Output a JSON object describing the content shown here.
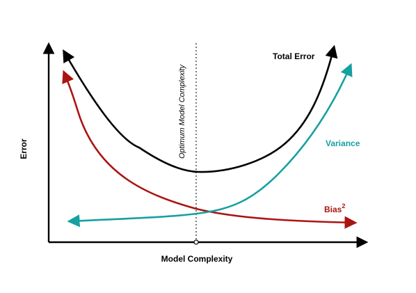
{
  "diagram": {
    "y_axis_label": "Error",
    "x_axis_label": "Model Complexity",
    "optimum_label": "Optimum Model Complexity",
    "curves": [
      {
        "key": "total",
        "label": "Total Error",
        "color": "#000000"
      },
      {
        "key": "variance",
        "label": "Variance",
        "color": "#17a0a0"
      },
      {
        "key": "bias",
        "label": "Bias",
        "superscript": "2",
        "color": "#aa1411"
      }
    ]
  }
}
